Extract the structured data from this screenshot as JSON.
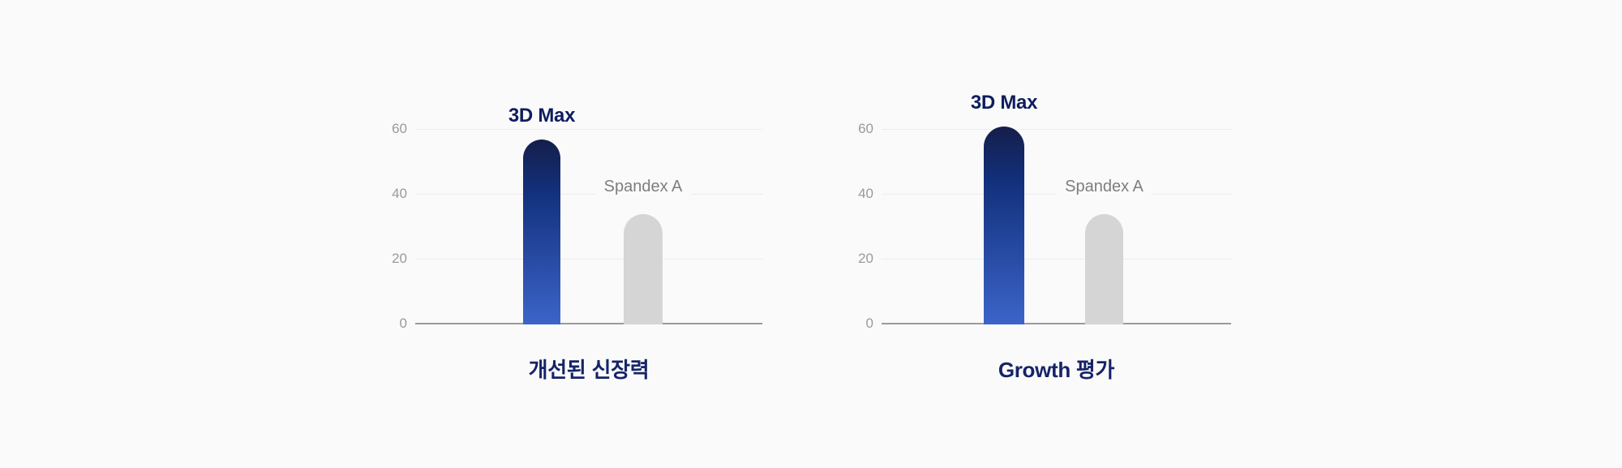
{
  "colors": {
    "background": "#fafafa",
    "bar_gradient_top": "#151e4b",
    "bar_gradient_mid": "#12307c",
    "bar_gradient_bottom": "#3c64c9",
    "bar_secondary": "#d5d5d5",
    "grid_line": "#ececec",
    "axis_line": "#9b9b9b",
    "tick_text": "#9a9a9a",
    "primary_label_text": "#0e1d5e",
    "secondary_label_text": "#7e7e7e",
    "title_text": "#152368"
  },
  "chart_data": [
    {
      "type": "bar",
      "title": "개선된 신장력",
      "categories": [
        "3D Max",
        "Spandex A"
      ],
      "values": [
        57,
        34
      ],
      "yticks": [
        0,
        20,
        40,
        60
      ],
      "ylim": [
        0,
        65
      ],
      "grid": "horizontal",
      "legend": "none",
      "bar_styles": [
        "blue-gradient",
        "gray"
      ]
    },
    {
      "type": "bar",
      "title": "Growth 평가",
      "categories": [
        "3D Max",
        "Spandex A"
      ],
      "values": [
        61,
        34
      ],
      "yticks": [
        0,
        20,
        40,
        60
      ],
      "ylim": [
        0,
        65
      ],
      "grid": "horizontal",
      "legend": "none",
      "bar_styles": [
        "blue-gradient",
        "gray"
      ]
    }
  ]
}
